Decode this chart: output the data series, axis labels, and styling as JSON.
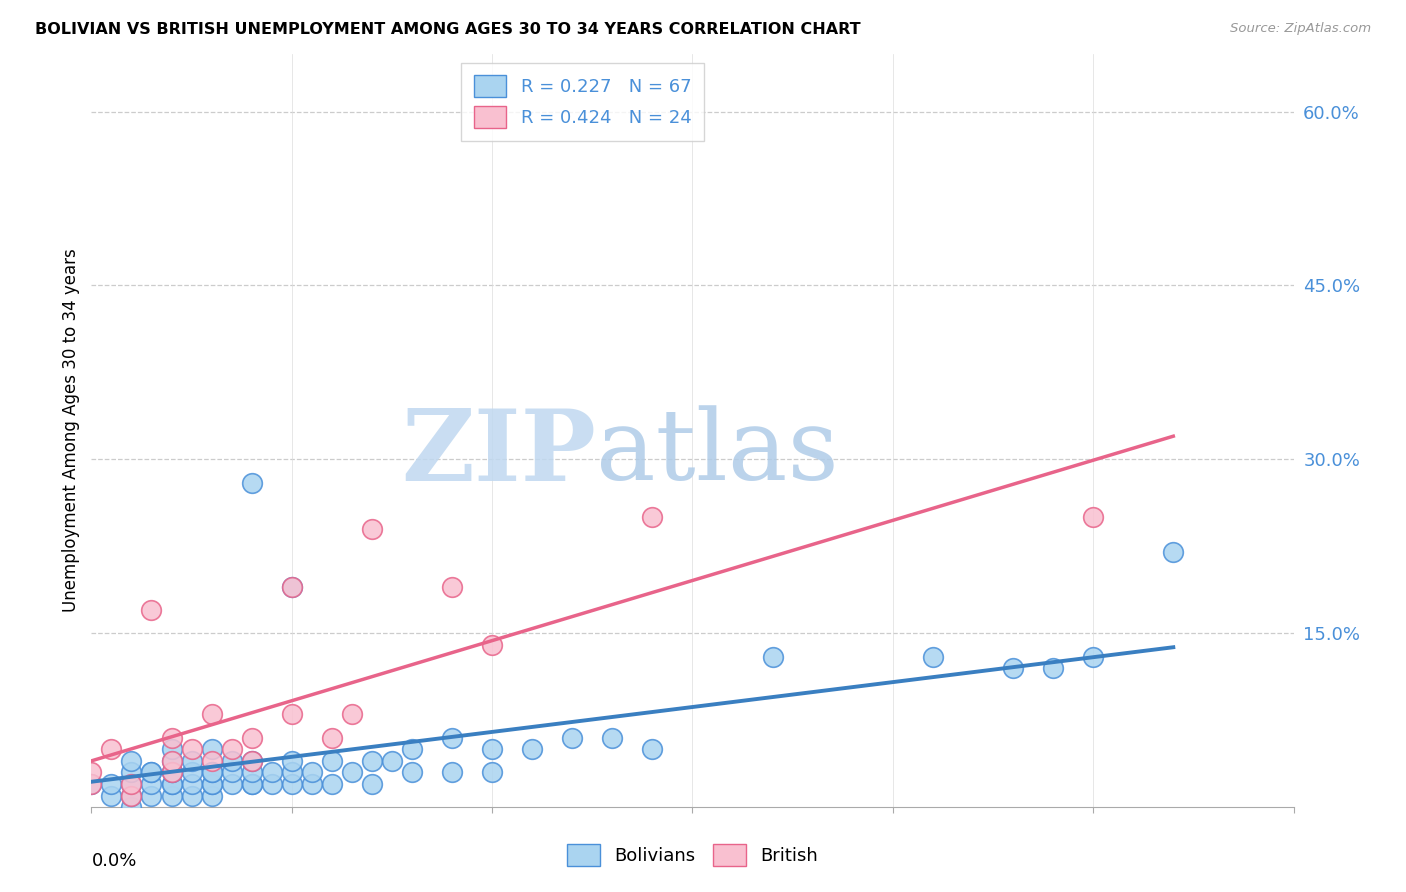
{
  "title": "BOLIVIAN VS BRITISH UNEMPLOYMENT AMONG AGES 30 TO 34 YEARS CORRELATION CHART",
  "source": "Source: ZipAtlas.com",
  "ylabel": "Unemployment Among Ages 30 to 34 years",
  "right_yticks": [
    0.0,
    0.15,
    0.3,
    0.45,
    0.6
  ],
  "right_yticklabels": [
    "",
    "15.0%",
    "30.0%",
    "45.0%",
    "60.0%"
  ],
  "xlim": [
    0.0,
    0.3
  ],
  "ylim": [
    0.0,
    0.65
  ],
  "legend_r1": "R = 0.227",
  "legend_n1": "N = 67",
  "legend_r2": "R = 0.424",
  "legend_n2": "N = 24",
  "color_bolivian_fill": "#aad4f0",
  "color_bolivian_edge": "#4a90d9",
  "color_british_fill": "#f9c0d0",
  "color_british_edge": "#e8648a",
  "color_bolivian_line": "#3a7fc1",
  "color_british_line": "#e8648a",
  "watermark_zip_color": "#c8e0f0",
  "watermark_atlas_color": "#c0d8e8",
  "bolivian_x": [
    0.0,
    0.005,
    0.005,
    0.01,
    0.01,
    0.01,
    0.01,
    0.01,
    0.015,
    0.015,
    0.015,
    0.015,
    0.02,
    0.02,
    0.02,
    0.02,
    0.02,
    0.02,
    0.02,
    0.025,
    0.025,
    0.025,
    0.025,
    0.03,
    0.03,
    0.03,
    0.03,
    0.03,
    0.03,
    0.035,
    0.035,
    0.035,
    0.04,
    0.04,
    0.04,
    0.04,
    0.04,
    0.045,
    0.045,
    0.05,
    0.05,
    0.05,
    0.05,
    0.055,
    0.055,
    0.06,
    0.06,
    0.065,
    0.07,
    0.07,
    0.075,
    0.08,
    0.08,
    0.09,
    0.09,
    0.1,
    0.1,
    0.11,
    0.12,
    0.13,
    0.14,
    0.17,
    0.21,
    0.23,
    0.24,
    0.25,
    0.27
  ],
  "bolivian_y": [
    0.02,
    0.01,
    0.02,
    0.0,
    0.01,
    0.02,
    0.03,
    0.04,
    0.01,
    0.02,
    0.03,
    0.03,
    0.01,
    0.02,
    0.02,
    0.03,
    0.03,
    0.04,
    0.05,
    0.01,
    0.02,
    0.03,
    0.04,
    0.01,
    0.02,
    0.02,
    0.03,
    0.03,
    0.05,
    0.02,
    0.03,
    0.04,
    0.02,
    0.02,
    0.03,
    0.04,
    0.28,
    0.02,
    0.03,
    0.02,
    0.03,
    0.04,
    0.19,
    0.02,
    0.03,
    0.02,
    0.04,
    0.03,
    0.02,
    0.04,
    0.04,
    0.03,
    0.05,
    0.03,
    0.06,
    0.03,
    0.05,
    0.05,
    0.06,
    0.06,
    0.05,
    0.13,
    0.13,
    0.12,
    0.12,
    0.13,
    0.22
  ],
  "british_x": [
    0.0,
    0.0,
    0.005,
    0.01,
    0.01,
    0.015,
    0.02,
    0.02,
    0.02,
    0.025,
    0.03,
    0.03,
    0.035,
    0.04,
    0.04,
    0.05,
    0.05,
    0.06,
    0.065,
    0.07,
    0.09,
    0.1,
    0.14,
    0.25
  ],
  "british_y": [
    0.02,
    0.03,
    0.05,
    0.01,
    0.02,
    0.17,
    0.03,
    0.04,
    0.06,
    0.05,
    0.04,
    0.08,
    0.05,
    0.04,
    0.06,
    0.08,
    0.19,
    0.06,
    0.08,
    0.24,
    0.19,
    0.14,
    0.25,
    0.25
  ],
  "bolivian_trend_x": [
    0.0,
    0.27
  ],
  "bolivian_trend_y": [
    0.022,
    0.138
  ],
  "british_trend_x": [
    0.0,
    0.27
  ],
  "british_trend_y": [
    0.04,
    0.32
  ]
}
